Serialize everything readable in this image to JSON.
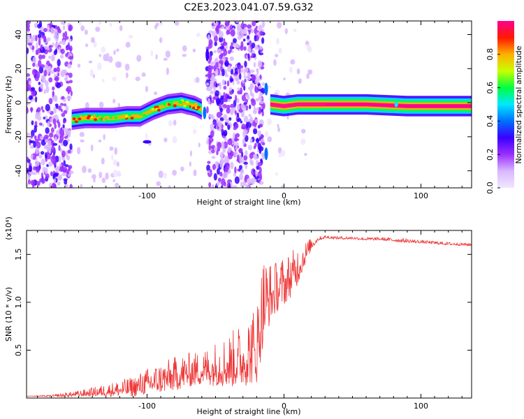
{
  "title": "C2E3.2023.041.07.59.G32",
  "colors": {
    "line": "#ee3333",
    "background": "#ffffff"
  },
  "chart_data": [
    {
      "type": "heatmap",
      "xlabel": "Height of straight line (km)",
      "ylabel": "Frequency (Hz)",
      "xlim": [
        -188,
        137
      ],
      "ylim": [
        -50,
        48
      ],
      "xticks": [
        {
          "value": -100,
          "label": "-100"
        },
        {
          "value": 0,
          "label": "0"
        },
        {
          "value": 100,
          "label": "100"
        }
      ],
      "yticks": [
        {
          "value": -40,
          "label": "-40"
        },
        {
          "value": -20,
          "label": "-20"
        },
        {
          "value": 0,
          "label": "0"
        },
        {
          "value": 20,
          "label": "20"
        },
        {
          "value": 40,
          "label": "40"
        }
      ],
      "colorbar": {
        "label": "Normalized spectral amplitude",
        "range": [
          0.0,
          1.0
        ],
        "ticks": [
          "0.0",
          "0.2",
          "0.4",
          "0.6",
          "0.8"
        ],
        "tick_values": [
          0.0,
          0.2,
          0.4,
          0.6,
          0.8
        ],
        "colormap": [
          "#f0e6ff",
          "#d9b8ff",
          "#9b30ff",
          "#3a00ff",
          "#0070ff",
          "#00e8ff",
          "#00ff40",
          "#c8ff00",
          "#ffb000",
          "#ff1800",
          "#ff0090"
        ]
      },
      "ridge": [
        {
          "x": -155,
          "y": -10
        },
        {
          "x": -145,
          "y": -9
        },
        {
          "x": -135,
          "y": -9
        },
        {
          "x": -125,
          "y": -9
        },
        {
          "x": -115,
          "y": -8
        },
        {
          "x": -105,
          "y": -8
        },
        {
          "x": -95,
          "y": -4
        },
        {
          "x": -85,
          "y": -1
        },
        {
          "x": -75,
          "y": 0
        },
        {
          "x": -65,
          "y": -2
        },
        {
          "x": -60,
          "y": -4
        },
        {
          "x": -10,
          "y": -1
        },
        {
          "x": 0,
          "y": -2
        },
        {
          "x": 10,
          "y": -1
        },
        {
          "x": 30,
          "y": -1
        },
        {
          "x": 60,
          "y": -1
        },
        {
          "x": 90,
          "y": -2
        },
        {
          "x": 137,
          "y": -2
        }
      ]
    },
    {
      "type": "line",
      "xlabel": "Height of straight line (km)",
      "ylabel": "SNR (10 * v/v)",
      "multiplier": "(x10⁴)",
      "xlim": [
        -188,
        137
      ],
      "ylim": [
        0.0,
        1.75
      ],
      "xticks": [
        {
          "value": -100,
          "label": "-100"
        },
        {
          "value": 0,
          "label": "0"
        },
        {
          "value": 100,
          "label": "100"
        }
      ],
      "yticks": [
        {
          "value": 0.5,
          "label": "0.5"
        },
        {
          "value": 1.0,
          "label": "1.0"
        },
        {
          "value": 1.5,
          "label": "1.5"
        }
      ],
      "series": [
        {
          "color": "#ee3333",
          "x": [
            -188,
            -170,
            -150,
            -130,
            -110,
            -100,
            -90,
            -80,
            -70,
            -60,
            -50,
            -40,
            -30,
            -20,
            -15,
            -10,
            -5,
            0,
            5,
            10,
            15,
            20,
            25,
            30,
            40,
            50,
            60,
            70,
            80,
            90,
            100,
            110,
            120,
            137
          ],
          "y": [
            0.02,
            0.02,
            0.04,
            0.07,
            0.1,
            0.15,
            0.18,
            0.22,
            0.26,
            0.28,
            0.32,
            0.34,
            0.4,
            0.5,
            0.95,
            1.05,
            1.12,
            1.18,
            1.25,
            1.35,
            1.48,
            1.6,
            1.66,
            1.68,
            1.67,
            1.67,
            1.66,
            1.66,
            1.65,
            1.64,
            1.63,
            1.62,
            1.61,
            1.6
          ],
          "noise": [
            0.0,
            0.01,
            0.03,
            0.06,
            0.1,
            0.13,
            0.15,
            0.17,
            0.17,
            0.17,
            0.22,
            0.27,
            0.32,
            0.4,
            0.45,
            0.3,
            0.25,
            0.25,
            0.22,
            0.2,
            0.12,
            0.06,
            0.02,
            0.015,
            0.015,
            0.015,
            0.015,
            0.015,
            0.02,
            0.02,
            0.015,
            0.015,
            0.015,
            0.015
          ]
        }
      ]
    }
  ]
}
